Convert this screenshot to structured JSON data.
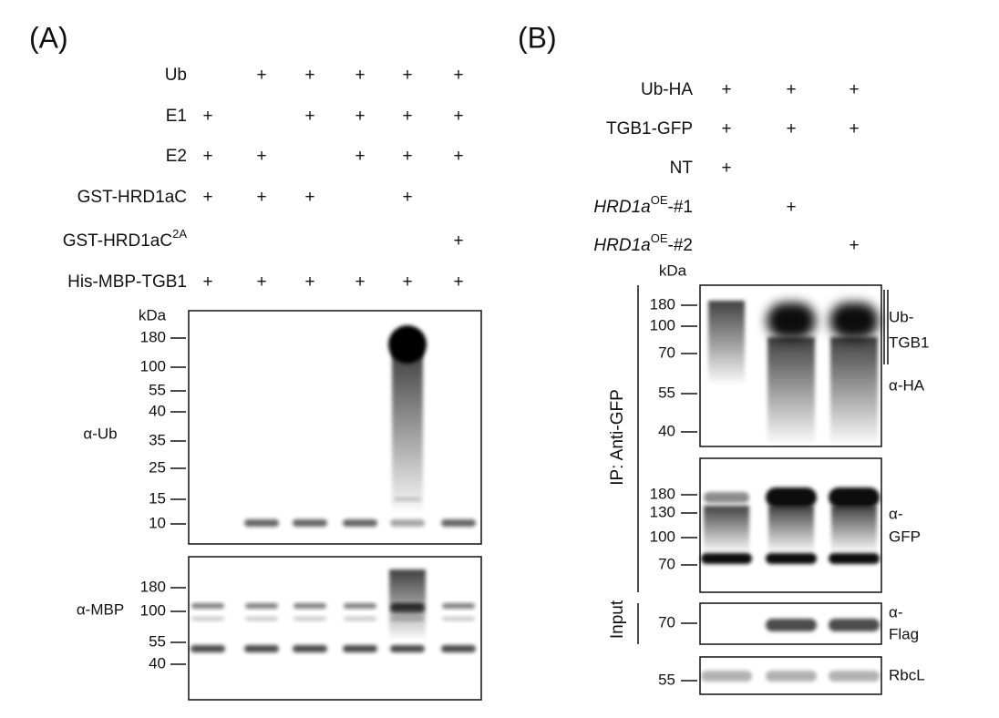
{
  "panels": [
    {
      "label": "(A)",
      "conditions": [
        {
          "name": "Ub",
          "marks": [
            null,
            "+",
            "+",
            "+",
            "+",
            "+"
          ]
        },
        {
          "name": "E1",
          "marks": [
            "+",
            null,
            "+",
            "+",
            "+",
            "+"
          ]
        },
        {
          "name": "E2",
          "marks": [
            "+",
            "+",
            null,
            "+",
            "+",
            "+"
          ]
        },
        {
          "name": "GST-HRD1aC",
          "marks": [
            "+",
            "+",
            "+",
            null,
            "+",
            null
          ]
        },
        {
          "name": "GST-HRD1aC",
          "sup": "2A",
          "marks": [
            null,
            null,
            null,
            null,
            null,
            "+"
          ]
        },
        {
          "name": "His-MBP-TGB1",
          "marks": [
            "+",
            "+",
            "+",
            "+",
            "+",
            "+"
          ]
        }
      ],
      "kda": "kDa",
      "blots": [
        {
          "labels": [
            "α-Ub"
          ],
          "markers": [
            180,
            100,
            55,
            40,
            35,
            25,
            15,
            10
          ]
        },
        {
          "labels": [
            "α-MBP"
          ],
          "markers": [
            180,
            100,
            55,
            40
          ]
        }
      ]
    },
    {
      "label": "(B)",
      "conditions": [
        {
          "name": "Ub-HA",
          "marks": [
            "+",
            "+",
            "+"
          ]
        },
        {
          "name": "TGB1-GFP",
          "marks": [
            "+",
            "+",
            "+"
          ]
        },
        {
          "name": "NT",
          "marks": [
            "+",
            null,
            null
          ]
        },
        {
          "name": "HRD1a",
          "italic": true,
          "sup": "OE",
          "suffix": "-#1",
          "marks": [
            null,
            "+",
            null
          ]
        },
        {
          "name": "HRD1a",
          "italic": true,
          "sup": "OE",
          "suffix": "-#2",
          "marks": [
            null,
            null,
            "+"
          ]
        }
      ],
      "kda": "kDa",
      "groups": [
        "IP: Anti-GFP",
        "Input"
      ],
      "blots": [
        {
          "labels": [
            "Ub-",
            "TGB1",
            "α-HA"
          ],
          "markers": [
            180,
            100,
            70,
            55,
            40
          ]
        },
        {
          "labels": [
            "α-",
            "GFP"
          ],
          "markers": [
            180,
            130,
            100,
            70
          ]
        },
        {
          "labels": [
            "α-",
            "Flag"
          ],
          "markers": [
            70
          ]
        },
        {
          "labels": [
            "RbcL"
          ],
          "markers": [
            55
          ]
        }
      ]
    }
  ]
}
